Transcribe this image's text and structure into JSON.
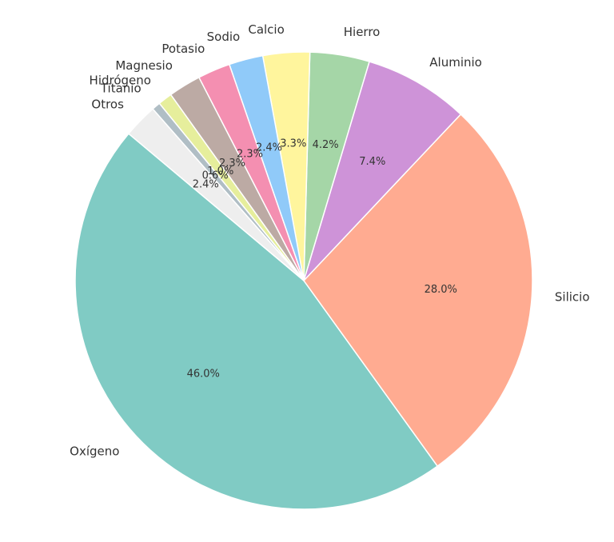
{
  "chart_data": {
    "type": "pie",
    "categories": [
      "Oxígeno",
      "Silicio",
      "Aluminio",
      "Hierro",
      "Calcio",
      "Sodio",
      "Potasio",
      "Magnesio",
      "Hidrógeno",
      "Titanio",
      "Otros"
    ],
    "values": [
      46.0,
      28.0,
      7.4,
      4.2,
      3.3,
      2.4,
      2.3,
      2.3,
      1.0,
      0.6,
      2.4
    ],
    "value_labels": [
      "46.0%",
      "28.0%",
      "7.4%",
      "4.2%",
      "3.3%",
      "2.4%",
      "2.3%",
      "2.3%",
      "1.0%",
      "0.6%",
      "2.4%"
    ],
    "colors": [
      "#80cbc4",
      "#ffab91",
      "#ce93d8",
      "#a5d6a7",
      "#fff59d",
      "#90caf9",
      "#f48fb1",
      "#bcaaa4",
      "#e6ee9c",
      "#b0bec5",
      "#eeeeee"
    ],
    "start_angle": 140
  }
}
